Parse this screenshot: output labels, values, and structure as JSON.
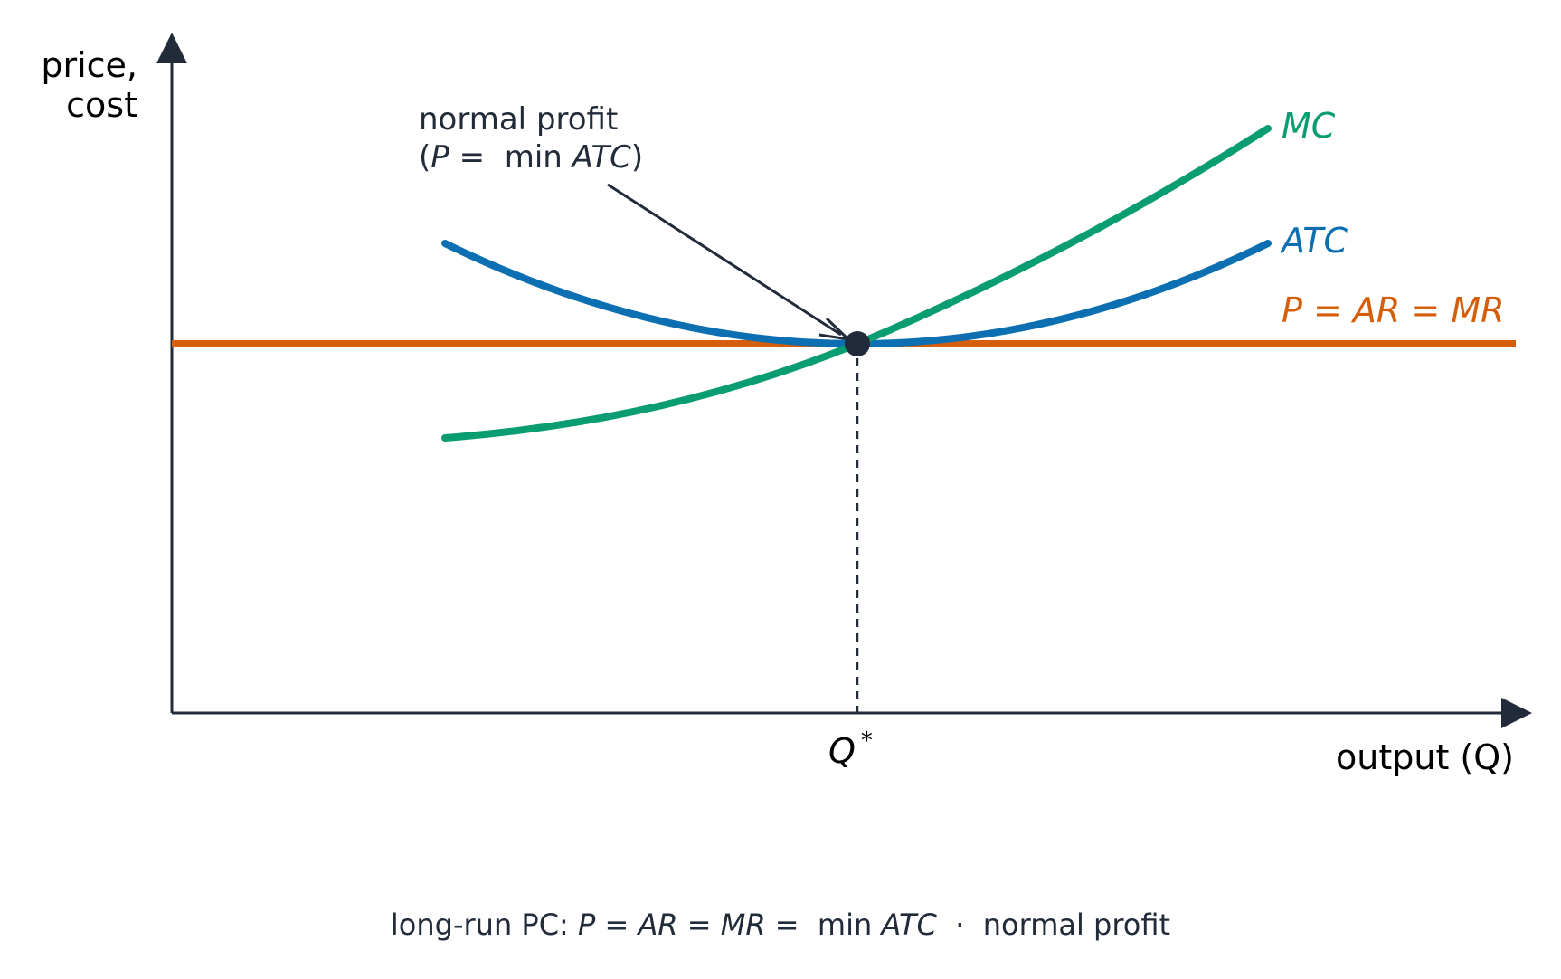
{
  "axes": {
    "y_label_line1": "price,",
    "y_label_line2": "cost",
    "x_label": "output (Q)"
  },
  "curves": {
    "mc_label": "MC",
    "atc_label": "ATC",
    "price_label": {
      "p": "P",
      "eq1": " = ",
      "ar": "AR",
      "eq2": " = ",
      "mr": "MR"
    }
  },
  "equilibrium": {
    "q_label": "Q",
    "q_superscript": "*"
  },
  "annotation": {
    "line1": "normal profit",
    "line2": {
      "open": "(",
      "p": "P",
      "eq": " =  min ",
      "atc": "ATC",
      "close": ")"
    }
  },
  "caption": {
    "prefix": "long-run PC: ",
    "p": "P",
    "eq1": " = ",
    "ar": "AR",
    "eq2": " = ",
    "mr": "MR",
    "eq3": " =  min ",
    "atc": "ATC",
    "sep": "  ·  ",
    "suffix": "normal profit"
  },
  "colors": {
    "axis": "#222b3a",
    "mc": "#0a9d72",
    "atc": "#0b6fb2",
    "price": "#d55e0a",
    "text": "#222b3a",
    "label_black": "#000000"
  }
}
